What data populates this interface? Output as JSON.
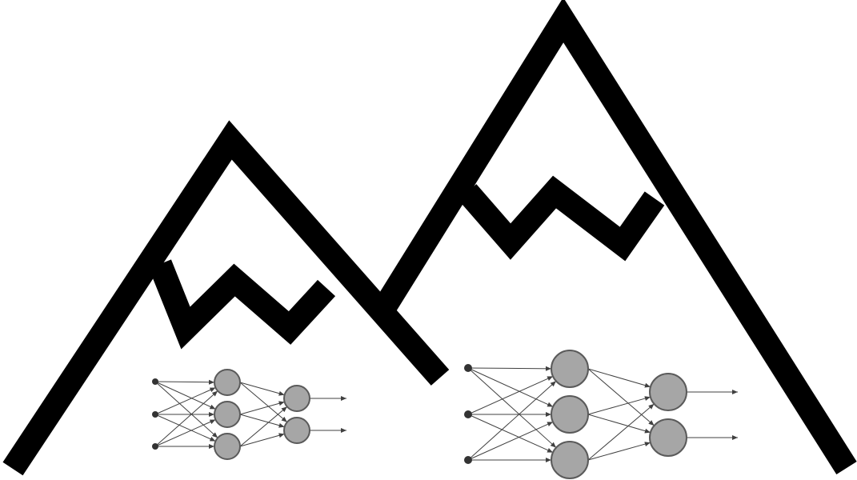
{
  "colors": {
    "mountain_stroke": "#000000",
    "background": "#ffffff",
    "node_fill": "#a6a6a6",
    "node_stroke": "#5a5a5a",
    "edge_stroke": "#404040"
  },
  "mountains": [
    {
      "name": "mountain-left"
    },
    {
      "name": "mountain-right"
    }
  ],
  "networks": [
    {
      "name": "small-network",
      "layers": [
        3,
        3,
        2
      ],
      "outputs": 2
    },
    {
      "name": "large-network",
      "layers": [
        3,
        3,
        2
      ],
      "outputs": 2
    }
  ]
}
